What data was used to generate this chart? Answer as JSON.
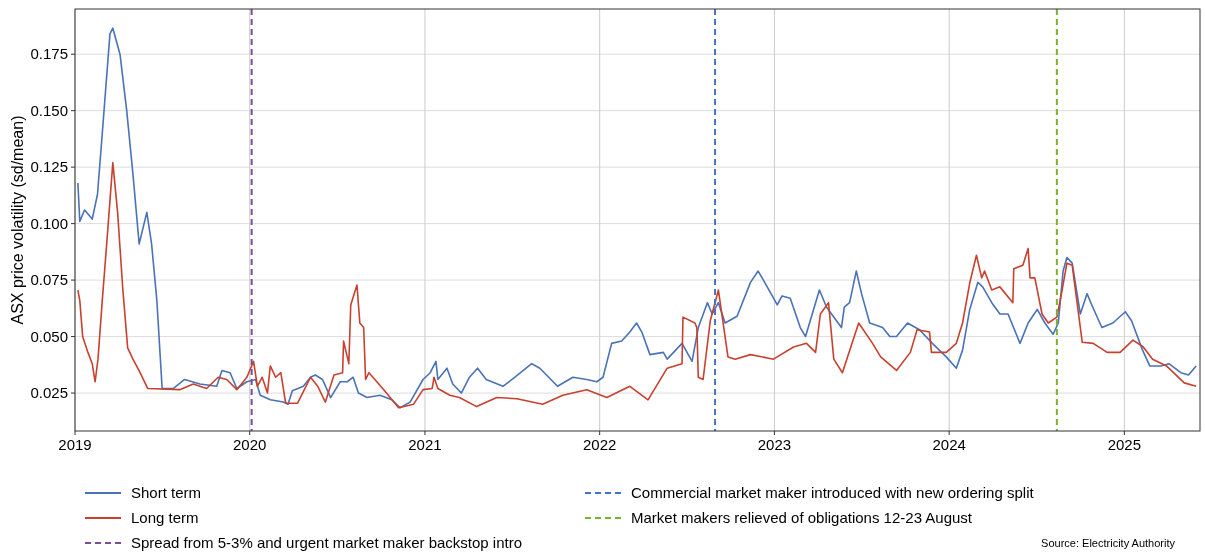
{
  "chart_data": {
    "type": "line",
    "ylabel": "ASX price volatility (sd/mean)",
    "xlim": [
      "2019-01-01",
      "2025-06-08"
    ],
    "xticks": [
      {
        "value": "2019-01-01",
        "label": "2019"
      },
      {
        "value": "2020-01-01",
        "label": "2020"
      },
      {
        "value": "2021-01-01",
        "label": "2021"
      },
      {
        "value": "2022-01-01",
        "label": "2022"
      },
      {
        "value": "2023-01-01",
        "label": "2023"
      },
      {
        "value": "2024-01-01",
        "label": "2024"
      },
      {
        "value": "2025-01-01",
        "label": "2025"
      }
    ],
    "ylim": [
      0.0082,
      0.195
    ],
    "yticks": [
      {
        "value": 0.025,
        "label": "0.025"
      },
      {
        "value": 0.05,
        "label": "0.050"
      },
      {
        "value": 0.075,
        "label": "0.075"
      },
      {
        "value": 0.1,
        "label": "0.100"
      },
      {
        "value": 0.125,
        "label": "0.125"
      },
      {
        "value": 0.15,
        "label": "0.150"
      },
      {
        "value": 0.175,
        "label": "0.175"
      }
    ],
    "grid": true,
    "legend": "bottom",
    "line_style": "solid",
    "series": [
      {
        "name": "Short term",
        "color": "#4a72b8",
        "x": [
          "2019-01-07",
          "2019-01-11",
          "2019-01-21",
          "2019-02-06",
          "2019-02-17",
          "2019-02-27",
          "2019-03-15",
          "2019-03-21",
          "2019-04-05",
          "2019-04-19",
          "2019-05-02",
          "2019-05-15",
          "2019-05-31",
          "2019-06-10",
          "2019-06-21",
          "2019-07-02",
          "2019-07-25",
          "2019-08-18",
          "2019-09-19",
          "2019-10-24",
          "2019-11-04",
          "2019-11-21",
          "2019-12-05",
          "2019-12-26",
          "2020-01-13",
          "2020-01-23",
          "2020-02-13",
          "2020-03-11",
          "2020-03-21",
          "2020-03-30",
          "2020-04-22",
          "2020-05-07",
          "2020-05-17",
          "2020-06-01",
          "2020-06-18",
          "2020-07-08",
          "2020-07-23",
          "2020-08-04",
          "2020-08-15",
          "2020-09-02",
          "2020-09-29",
          "2020-10-24",
          "2020-11-10",
          "2020-12-01",
          "2020-12-28",
          "2021-01-12",
          "2021-01-24",
          "2021-01-28",
          "2021-02-16",
          "2021-02-28",
          "2021-03-18",
          "2021-04-04",
          "2021-04-21",
          "2021-05-09",
          "2021-06-13",
          "2021-07-08",
          "2021-08-12",
          "2021-08-29",
          "2021-10-05",
          "2021-11-06",
          "2021-12-05",
          "2021-12-26",
          "2022-01-08",
          "2022-01-26",
          "2022-02-16",
          "2022-03-05",
          "2022-03-19",
          "2022-03-30",
          "2022-04-16",
          "2022-05-14",
          "2022-05-22",
          "2022-06-22",
          "2022-07-13",
          "2022-07-26",
          "2022-08-14",
          "2022-08-24",
          "2022-09-06",
          "2022-09-20",
          "2022-10-15",
          "2022-11-12",
          "2022-11-28",
          "2022-12-09",
          "2023-01-07",
          "2023-01-17",
          "2023-02-03",
          "2023-02-24",
          "2023-03-07",
          "2023-04-05",
          "2023-04-20",
          "2023-05-21",
          "2023-05-27",
          "2023-06-07",
          "2023-06-21",
          "2023-07-02",
          "2023-07-19",
          "2023-08-15",
          "2023-08-30",
          "2023-09-13",
          "2023-10-06",
          "2023-10-31",
          "2023-11-27",
          "2023-12-26",
          "2024-01-16",
          "2024-01-29",
          "2024-02-13",
          "2024-03-01",
          "2024-03-11",
          "2024-03-30",
          "2024-04-16",
          "2024-05-03",
          "2024-05-28",
          "2024-06-14",
          "2024-07-03",
          "2024-07-19",
          "2024-08-05",
          "2024-08-16",
          "2024-08-26",
          "2024-09-03",
          "2024-09-14",
          "2024-10-01",
          "2024-10-15",
          "2024-10-25",
          "2024-11-15",
          "2024-12-08",
          "2025-01-03",
          "2025-01-16",
          "2025-02-08",
          "2025-02-23",
          "2025-03-18",
          "2025-04-04",
          "2025-04-29",
          "2025-05-15",
          "2025-05-31"
        ],
        "values": [
          0.118,
          0.101,
          0.106,
          0.102,
          0.113,
          0.14,
          0.184,
          0.1865,
          0.175,
          0.15,
          0.122,
          0.091,
          0.105,
          0.091,
          0.066,
          0.027,
          0.027,
          0.031,
          0.029,
          0.028,
          0.035,
          0.034,
          0.027,
          0.03,
          0.031,
          0.024,
          0.022,
          0.021,
          0.02,
          0.026,
          0.028,
          0.032,
          0.033,
          0.031,
          0.023,
          0.03,
          0.03,
          0.032,
          0.025,
          0.023,
          0.024,
          0.022,
          0.0185,
          0.021,
          0.031,
          0.034,
          0.039,
          0.031,
          0.036,
          0.029,
          0.025,
          0.032,
          0.036,
          0.031,
          0.028,
          0.032,
          0.038,
          0.036,
          0.028,
          0.032,
          0.031,
          0.03,
          0.032,
          0.047,
          0.048,
          0.052,
          0.056,
          0.052,
          0.042,
          0.043,
          0.04,
          0.047,
          0.039,
          0.054,
          0.065,
          0.06,
          0.065,
          0.056,
          0.059,
          0.074,
          0.079,
          0.075,
          0.064,
          0.068,
          0.067,
          0.054,
          0.05,
          0.0706,
          0.063,
          0.054,
          0.063,
          0.065,
          0.079,
          0.069,
          0.056,
          0.054,
          0.05,
          0.05,
          0.056,
          0.053,
          0.047,
          0.041,
          0.036,
          0.044,
          0.062,
          0.074,
          0.072,
          0.065,
          0.06,
          0.06,
          0.047,
          0.056,
          0.062,
          0.056,
          0.051,
          0.056,
          0.079,
          0.085,
          0.0825,
          0.06,
          0.069,
          0.064,
          0.054,
          0.056,
          0.061,
          0.057,
          0.044,
          0.037,
          0.037,
          0.038,
          0.034,
          0.033,
          0.037
        ]
      },
      {
        "name": "Long term",
        "color": "#c8412f",
        "x": [
          "2019-01-07",
          "2019-01-11",
          "2019-01-17",
          "2019-01-28",
          "2019-02-06",
          "2019-02-12",
          "2019-02-18",
          "2019-02-27",
          "2019-03-10",
          "2019-03-21",
          "2019-03-31",
          "2019-04-11",
          "2019-04-21",
          "2019-05-02",
          "2019-05-17",
          "2019-06-02",
          "2019-08-08",
          "2019-09-05",
          "2019-10-03",
          "2019-10-27",
          "2019-11-14",
          "2019-12-05",
          "2019-12-26",
          "2020-01-09",
          "2020-01-17",
          "2020-01-27",
          "2020-02-07",
          "2020-02-13",
          "2020-02-24",
          "2020-03-06",
          "2020-03-16",
          "2020-04-10",
          "2020-05-07",
          "2020-05-22",
          "2020-06-07",
          "2020-06-25",
          "2020-07-13",
          "2020-07-15",
          "2020-07-26",
          "2020-07-30",
          "2020-08-12",
          "2020-08-18",
          "2020-08-26",
          "2020-08-30",
          "2020-09-06",
          "2020-10-07",
          "2020-11-07",
          "2020-12-08",
          "2020-12-28",
          "2021-01-16",
          "2021-01-20",
          "2021-01-28",
          "2021-02-22",
          "2021-03-14",
          "2021-04-19",
          "2021-05-31",
          "2021-07-12",
          "2021-09-04",
          "2021-10-16",
          "2021-12-05",
          "2022-01-16",
          "2022-03-05",
          "2022-04-12",
          "2022-05-22",
          "2022-06-22",
          "2022-06-24",
          "2022-07-19",
          "2022-07-23",
          "2022-07-26",
          "2022-08-05",
          "2022-08-20",
          "2022-09-06",
          "2022-09-26",
          "2022-10-11",
          "2022-11-12",
          "2022-12-30",
          "2023-02-10",
          "2023-03-09",
          "2023-03-28",
          "2023-04-07",
          "2023-04-24",
          "2023-05-05",
          "2023-05-23",
          "2023-06-26",
          "2023-07-25",
          "2023-08-11",
          "2023-09-13",
          "2023-10-12",
          "2023-10-26",
          "2023-11-21",
          "2023-11-25",
          "2023-12-26",
          "2024-01-16",
          "2024-01-29",
          "2024-02-13",
          "2024-02-27",
          "2024-03-09",
          "2024-03-15",
          "2024-03-30",
          "2024-04-16",
          "2024-05-13",
          "2024-05-15",
          "2024-06-03",
          "2024-06-14",
          "2024-06-18",
          "2024-06-28",
          "2024-07-13",
          "2024-07-26",
          "2024-08-13",
          "2024-08-24",
          "2024-09-03",
          "2024-09-14",
          "2024-10-05",
          "2024-10-28",
          "2024-11-26",
          "2024-12-23",
          "2025-01-19",
          "2025-02-09",
          "2025-03-01",
          "2025-03-30",
          "2025-05-06",
          "2025-05-31"
        ],
        "values": [
          0.0706,
          0.066,
          0.05,
          0.043,
          0.038,
          0.03,
          0.04,
          0.066,
          0.096,
          0.127,
          0.105,
          0.0706,
          0.045,
          0.04,
          0.034,
          0.027,
          0.0265,
          0.029,
          0.027,
          0.032,
          0.031,
          0.0265,
          0.032,
          0.039,
          0.028,
          0.032,
          0.025,
          0.037,
          0.032,
          0.034,
          0.0205,
          0.0205,
          0.032,
          0.028,
          0.021,
          0.033,
          0.034,
          0.048,
          0.038,
          0.064,
          0.0728,
          0.056,
          0.054,
          0.031,
          0.034,
          0.0265,
          0.0185,
          0.02,
          0.0265,
          0.027,
          0.032,
          0.027,
          0.024,
          0.023,
          0.019,
          0.023,
          0.0225,
          0.02,
          0.024,
          0.0265,
          0.023,
          0.028,
          0.022,
          0.036,
          0.038,
          0.0586,
          0.056,
          0.054,
          0.032,
          0.031,
          0.057,
          0.0706,
          0.041,
          0.04,
          0.042,
          0.04,
          0.0454,
          0.047,
          0.043,
          0.06,
          0.065,
          0.04,
          0.034,
          0.056,
          0.047,
          0.041,
          0.035,
          0.043,
          0.053,
          0.052,
          0.043,
          0.043,
          0.047,
          0.056,
          0.0737,
          0.086,
          0.076,
          0.079,
          0.0706,
          0.072,
          0.065,
          0.08,
          0.0816,
          0.089,
          0.076,
          0.076,
          0.06,
          0.056,
          0.0586,
          0.0706,
          0.0825,
          0.0816,
          0.0475,
          0.047,
          0.043,
          0.043,
          0.0484,
          0.0455,
          0.04,
          0.037,
          0.0295,
          0.028
        ]
      }
    ],
    "ref_lines": [
      {
        "axis": "x",
        "value": "2020-01-05",
        "label": "Spread from 5-3% and urgent market maker backstop intro",
        "color": "#7b4e9a",
        "line_style": "dashed"
      },
      {
        "axis": "x",
        "value": "2022-08-30",
        "label": "Commercial market maker introduced with new ordering split",
        "color": "#4472c4",
        "line_style": "dashed"
      },
      {
        "axis": "x",
        "value": "2024-08-13",
        "label": "Market makers relieved of obligations 12-23 August",
        "color": "#7ab32e",
        "line_style": "dashed"
      }
    ],
    "annotations": [
      "Source: Electricity Authority"
    ]
  }
}
